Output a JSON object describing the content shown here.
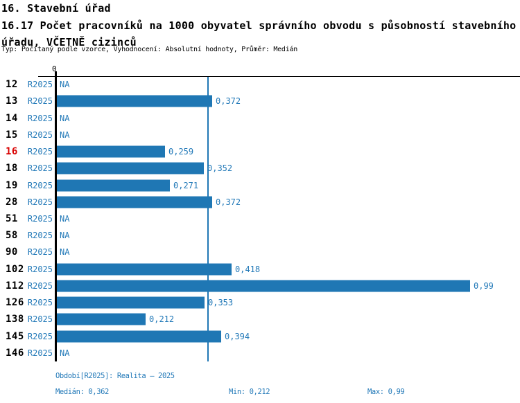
{
  "header": {
    "section_title": "16. Stavební úřad",
    "indicator_title": "16.17 Počet pracovníků na 1000 obyvatel správního obvodu s působností stavebního úřadu, VČETNĚ cizinců",
    "meta": "Typ: Počítaný podle vzorce, Vyhodnocení: Absolutní hodnoty, Průměr: Medián"
  },
  "chart_data": {
    "type": "bar",
    "orientation": "horizontal",
    "title": "16.17 Počet pracovníků na 1000 obyvatel správního obvodu s působností stavebního úřadu, VČETNĚ cizinců",
    "axis_zero_label": "0",
    "period_label": "R2025",
    "na_label": "NA",
    "categories": [
      "12",
      "13",
      "14",
      "15",
      "16",
      "18",
      "19",
      "28",
      "51",
      "58",
      "90",
      "102",
      "112",
      "126",
      "138",
      "145",
      "146"
    ],
    "values": [
      null,
      0.372,
      null,
      null,
      0.259,
      0.352,
      0.271,
      0.372,
      null,
      null,
      null,
      0.418,
      0.99,
      0.353,
      0.212,
      0.394,
      null
    ],
    "value_labels": [
      "NA",
      "0,372",
      "NA",
      "NA",
      "0,259",
      "0,352",
      "0,271",
      "0,372",
      "NA",
      "NA",
      "NA",
      "0,418",
      "0,99",
      "0,353",
      "0,212",
      "0,394",
      "NA"
    ],
    "highlighted_category": "16",
    "median": 0.362,
    "min": 0.212,
    "max": 0.99,
    "xlim": [
      0,
      0.99
    ],
    "grid": "median-line-only",
    "bar_color": "#1f77b4",
    "highlight_color": "#d80000",
    "text_color": "#2279b8"
  },
  "footer": {
    "period_info": "Období[R2025]: Realita – 2025",
    "median_label": "Medián: 0,362",
    "min_label": "Min: 0,212",
    "max_label": "Max: 0,99"
  }
}
